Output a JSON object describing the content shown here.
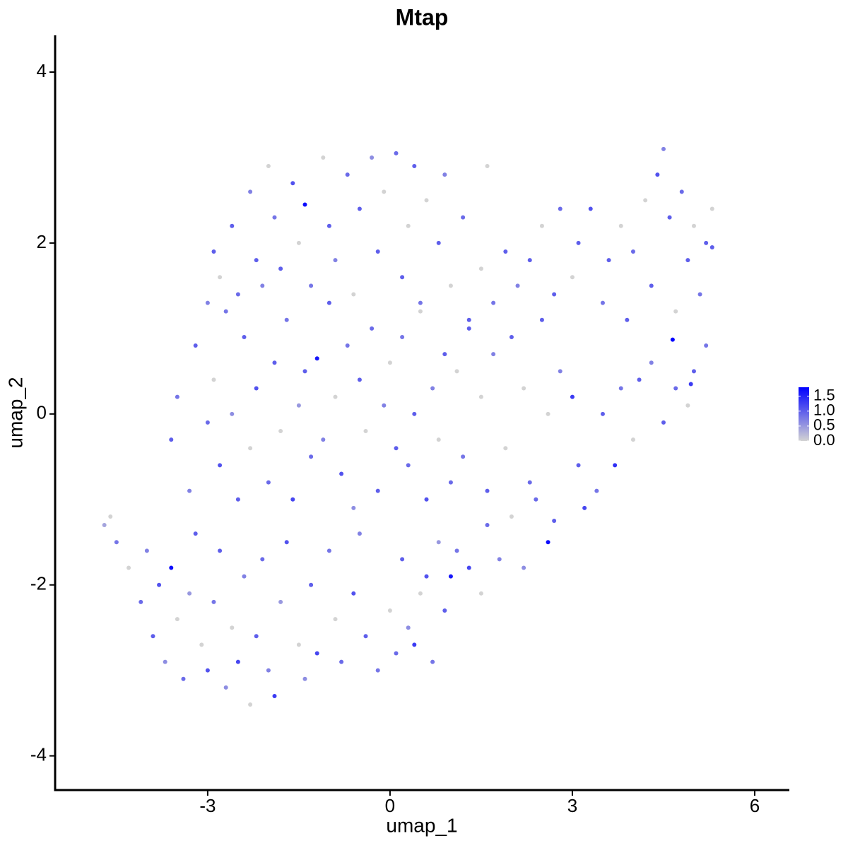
{
  "chart_data": {
    "type": "scatter",
    "title": "Mtap",
    "x_label": "umap_1",
    "y_label": "umap_2",
    "xlim": [
      -5.51,
      6.57
    ],
    "ylim": [
      -4.4,
      4.43
    ],
    "xticks": [
      -3,
      0,
      3,
      6
    ],
    "yticks": [
      -4,
      -2,
      0,
      2,
      4
    ],
    "grid": false,
    "color_scale": {
      "colors": [
        "#d3d3d3",
        "#0000ff"
      ],
      "lim": [
        0,
        1.8
      ],
      "ticks": [
        {
          "value": 0,
          "label": "0.0"
        },
        {
          "value": 0.5,
          "label": "0.5"
        },
        {
          "value": 1,
          "label": "1.0"
        },
        {
          "value": 1.5,
          "label": "1.5"
        }
      ]
    },
    "x": [
      -4.7,
      -4.6,
      -4.5,
      -4.3,
      -4.1,
      -4.0,
      -3.9,
      -3.8,
      -3.7,
      -3.6,
      -3.5,
      -3.4,
      -3.3,
      -3.2,
      -3.1,
      -3.0,
      -2.9,
      -2.8,
      -2.7,
      -2.6,
      -2.5,
      -2.4,
      -2.3,
      -2.2,
      -2.1,
      -2.0,
      -1.9,
      -1.8,
      -1.7,
      -1.5,
      -1.4,
      -1.3,
      -1.2,
      -1.0,
      -0.9,
      -0.8,
      -0.6,
      -0.5,
      -0.4,
      -0.2,
      0,
      0.1,
      0.2,
      0.3,
      0.4,
      0.5,
      0.6,
      0.7,
      0.8,
      0.9,
      1.0,
      1.1,
      1.3,
      1.5,
      1.6,
      1.8,
      2.0,
      2.2,
      2.4,
      2.6,
      2.7,
      -3.6,
      -3.5,
      -3.3,
      -3.2,
      -3.0,
      -2.9,
      -2.8,
      -2.7,
      -2.6,
      -2.5,
      -2.4,
      -2.3,
      -2.2,
      -2.1,
      -2.0,
      -1.9,
      -1.8,
      -1.7,
      -1.6,
      -1.5,
      -1.4,
      -1.3,
      -1.2,
      -1.1,
      -1.0,
      -0.9,
      -0.8,
      -0.7,
      -0.6,
      -0.5,
      -0.4,
      -0.3,
      -0.2,
      -0.1,
      0,
      0.1,
      0.2,
      0.3,
      0.4,
      0.5,
      0.6,
      0.7,
      0.8,
      0.9,
      1.0,
      1.1,
      1.2,
      1.3,
      1.5,
      1.6,
      1.7,
      1.9,
      2.0,
      2.2,
      2.3,
      2.5,
      2.6,
      2.8,
      3.0,
      3.1,
      3.2,
      3.4,
      3.5,
      3.7,
      3.8,
      4.0,
      4.1,
      4.3,
      4.5,
      4.7,
      4.9,
      5.0,
      5.2,
      -3.0,
      -2.9,
      -2.8,
      -2.6,
      -2.5,
      -2.3,
      -2.2,
      -2.0,
      -1.9,
      -1.8,
      -1.6,
      -1.5,
      -1.4,
      -1.3,
      -1.1,
      -1.0,
      -0.9,
      -0.7,
      -0.6,
      -0.5,
      -0.3,
      -0.2,
      -0.1,
      0.1,
      0.2,
      0.3,
      0.4,
      0.5,
      0.6,
      0.8,
      0.9,
      1.0,
      1.2,
      1.3,
      1.5,
      1.6,
      1.7,
      1.9,
      2.1,
      2.3,
      2.5,
      2.7,
      2.8,
      3.0,
      3.1,
      3.3,
      3.5,
      3.6,
      3.8,
      3.9,
      4.0,
      4.2,
      4.3,
      4.4,
      4.5,
      4.6,
      4.65,
      4.7,
      4.8,
      4.9,
      5.0,
      5.1,
      5.2,
      5.3,
      5.3,
      4.95
    ],
    "y": [
      -1.3,
      -1.2,
      -1.5,
      -1.8,
      -2.2,
      -1.6,
      -2.6,
      -2.0,
      -2.9,
      -1.8,
      -2.4,
      -3.1,
      -2.1,
      -1.4,
      -2.7,
      -3.0,
      -2.2,
      -1.6,
      -3.2,
      -2.5,
      -2.9,
      -1.9,
      -3.4,
      -2.6,
      -1.7,
      -3.0,
      -3.3,
      -2.2,
      -1.5,
      -2.7,
      -3.1,
      -2.0,
      -2.8,
      -1.6,
      -2.4,
      -2.9,
      -2.1,
      -1.4,
      -2.6,
      -3.0,
      -2.3,
      -2.8,
      -1.7,
      -2.5,
      -2.7,
      -2.1,
      -1.9,
      -2.9,
      -1.5,
      -2.3,
      -1.9,
      -1.6,
      -1.8,
      -2.1,
      -1.3,
      -1.7,
      -1.2,
      -1.8,
      -1.0,
      -1.5,
      -1.25,
      -0.3,
      0.2,
      -0.9,
      0.8,
      -0.1,
      0.4,
      -0.6,
      1.2,
      0.0,
      -1.0,
      0.9,
      -0.4,
      0.3,
      1.5,
      -0.8,
      0.6,
      -0.2,
      1.1,
      -1.0,
      0.1,
      0.5,
      -0.5,
      0.65,
      -0.3,
      1.3,
      0.2,
      -0.7,
      0.8,
      -1.1,
      0.4,
      -0.2,
      1.0,
      -0.9,
      0.1,
      0.6,
      -0.4,
      0.9,
      -0.6,
      0.0,
      1.2,
      -1.0,
      0.3,
      -0.3,
      0.7,
      -0.8,
      0.5,
      -0.5,
      1.0,
      0.2,
      -0.9,
      0.7,
      -0.4,
      0.9,
      0.3,
      -0.8,
      1.1,
      0.0,
      0.5,
      0.2,
      -0.6,
      -1.1,
      -0.9,
      0.0,
      -0.6,
      0.3,
      -0.3,
      0.4,
      0.6,
      -0.1,
      0.3,
      0.1,
      0.5,
      0.8,
      1.3,
      1.9,
      1.6,
      2.2,
      1.4,
      2.6,
      1.8,
      2.9,
      2.3,
      1.7,
      2.7,
      2.0,
      2.45,
      1.5,
      3.0,
      2.2,
      1.8,
      2.8,
      1.4,
      2.4,
      3.0,
      1.9,
      2.6,
      3.05,
      1.6,
      2.2,
      2.9,
      1.3,
      2.5,
      2.0,
      2.8,
      1.5,
      2.3,
      1.1,
      1.7,
      2.9,
      1.3,
      1.9,
      1.5,
      1.8,
      2.2,
      1.4,
      2.4,
      1.6,
      2.0,
      2.4,
      1.3,
      1.8,
      2.2,
      1.1,
      1.9,
      2.5,
      1.5,
      2.8,
      3.1,
      2.3,
      0.87,
      1.2,
      2.6,
      1.8,
      2.2,
      1.4,
      2.0,
      2.4,
      1.95,
      0.35
    ],
    "values": [
      0.4,
      0,
      0.8,
      0,
      0.9,
      0.7,
      1.0,
      1.1,
      0.6,
      1.7,
      0,
      0.9,
      0.5,
      1.0,
      0,
      1.1,
      0.8,
      1.0,
      0.6,
      0,
      1.2,
      0.7,
      0,
      1.0,
      0.9,
      0.7,
      1.3,
      0.5,
      1.1,
      0,
      0.6,
      1.0,
      1.2,
      0.8,
      0,
      0.9,
      1.1,
      0.7,
      1.0,
      0.8,
      0,
      0.9,
      1.0,
      0.6,
      1.3,
      0,
      1.1,
      0.8,
      0.5,
      1.0,
      1.6,
      0.8,
      1.2,
      0,
      0.9,
      0.7,
      0,
      0.6,
      0.9,
      1.7,
      1.0,
      1.0,
      0.8,
      0.7,
      1.0,
      0.9,
      0,
      1.1,
      0.8,
      0.6,
      1.0,
      1.0,
      0,
      1.1,
      0.7,
      0.9,
      1.0,
      0,
      0.8,
      1.2,
      0.5,
      1.0,
      0.9,
      1.6,
      0.7,
      1.0,
      0,
      1.1,
      0.8,
      0.6,
      1.0,
      0,
      0.9,
      1.0,
      0.7,
      0,
      1.0,
      0.8,
      0.9,
      1.0,
      0,
      1.1,
      0.7,
      0,
      1.0,
      0.9,
      0,
      0.8,
      1.0,
      0,
      1.0,
      0.7,
      0,
      1.0,
      0,
      0.9,
      1.0,
      0,
      0.7,
      1.3,
      1.0,
      1.2,
      0.8,
      1.0,
      1.4,
      0.8,
      0,
      1.0,
      0.7,
      1.0,
      0.9,
      0,
      1.0,
      0.8,
      0.7,
      1.0,
      0,
      1.0,
      0.9,
      0.7,
      1.0,
      0,
      0.8,
      1.0,
      1.1,
      0,
      1.7,
      0.8,
      0,
      1.0,
      0.7,
      0.9,
      0,
      1.0,
      0.6,
      1.0,
      0,
      0.9,
      1.0,
      0,
      1.0,
      0.8,
      0,
      1.0,
      0.7,
      0,
      0.9,
      1.0,
      0,
      0,
      0.8,
      1.0,
      0.7,
      1.0,
      0,
      1.0,
      0.9,
      0,
      1.0,
      1.1,
      0.8,
      1.0,
      0,
      1.0,
      0.9,
      0,
      1.0,
      1.1,
      0.7,
      1.0,
      1.8,
      0,
      0.9,
      1.0,
      0,
      0.8,
      1.0,
      0,
      1.0,
      1.3
    ]
  }
}
